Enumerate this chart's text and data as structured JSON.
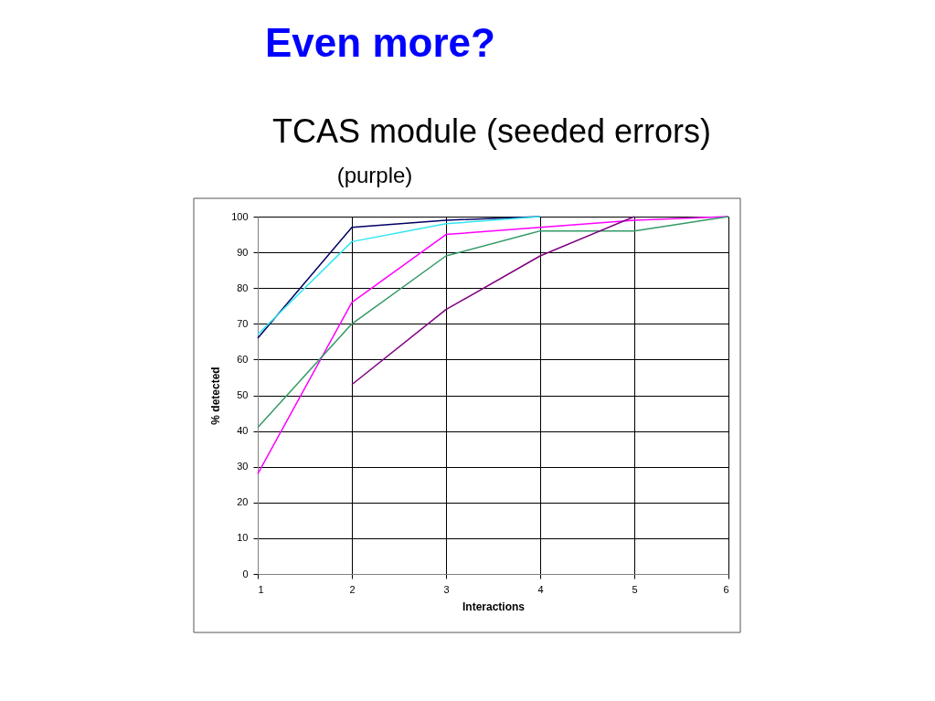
{
  "chart_data": {
    "type": "line",
    "title": "Even more?",
    "subtitle": "TCAS module (seeded errors)",
    "annotations": [
      "(purple)"
    ],
    "xlabel": "Interactions",
    "ylabel": "% detected",
    "x": [
      1,
      2,
      3,
      4,
      5,
      6
    ],
    "series": [
      {
        "color": "#000066",
        "values": [
          66,
          97,
          99,
          100,
          null,
          null
        ]
      },
      {
        "color": "#33e6f0",
        "values": [
          67,
          93,
          98,
          100,
          null,
          null
        ]
      },
      {
        "color": "#ff00ff",
        "values": [
          28,
          76,
          95,
          97,
          99,
          100
        ]
      },
      {
        "color": "#339966",
        "values": [
          41,
          70,
          89,
          96,
          96,
          100
        ]
      },
      {
        "color": "#800080",
        "values": [
          null,
          53,
          74,
          89,
          100,
          null
        ]
      }
    ],
    "xlim": [
      1,
      6
    ],
    "xticks": [
      1,
      2,
      3,
      4,
      5,
      6
    ],
    "ylim": [
      0,
      100
    ],
    "yticks": [
      0,
      10,
      20,
      30,
      40,
      50,
      60,
      70,
      80,
      90,
      100
    ],
    "grid": true,
    "legend": false,
    "marker": "none",
    "line_style": "solid"
  }
}
